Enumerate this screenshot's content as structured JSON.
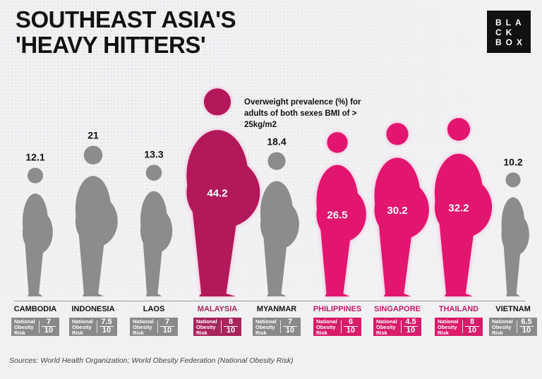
{
  "title_lines": [
    "SOUTHEAST ASIA'S",
    "'HEAVY HITTERS'"
  ],
  "logo": "BLACKBOX",
  "logo_lines": [
    "BLA",
    "CK",
    "BOX"
  ],
  "source": "Sources: World Health Organization; World Obesity Federation (National Obesity Risk)",
  "colors": {
    "gray": "#8c8c8c",
    "malaysia": "#b3185a",
    "highlight": "#e2156f"
  },
  "chart_data": {
    "type": "pictogram",
    "title": "Overweight prevalence (%) for adults of both sexes BMI of > 25kg/m2",
    "categories": [
      "CAMBODIA",
      "INDONESIA",
      "LAOS",
      "MALAYSIA",
      "MYANMAR",
      "PHILIPPINES",
      "SINGAPORE",
      "THAILAND",
      "VIETNAM"
    ],
    "values": [
      12.1,
      21,
      13.3,
      44.2,
      18.4,
      26.5,
      30.2,
      32.2,
      10.2
    ],
    "highlight": [
      false,
      false,
      false,
      true,
      false,
      true,
      true,
      true,
      false
    ],
    "risk_label": "National Obesity Risk",
    "risk_values": [
      "7",
      "7.5",
      "7",
      "8",
      "7",
      "6",
      "4.5",
      "8",
      "6.5"
    ],
    "risk_denominator": "10"
  }
}
